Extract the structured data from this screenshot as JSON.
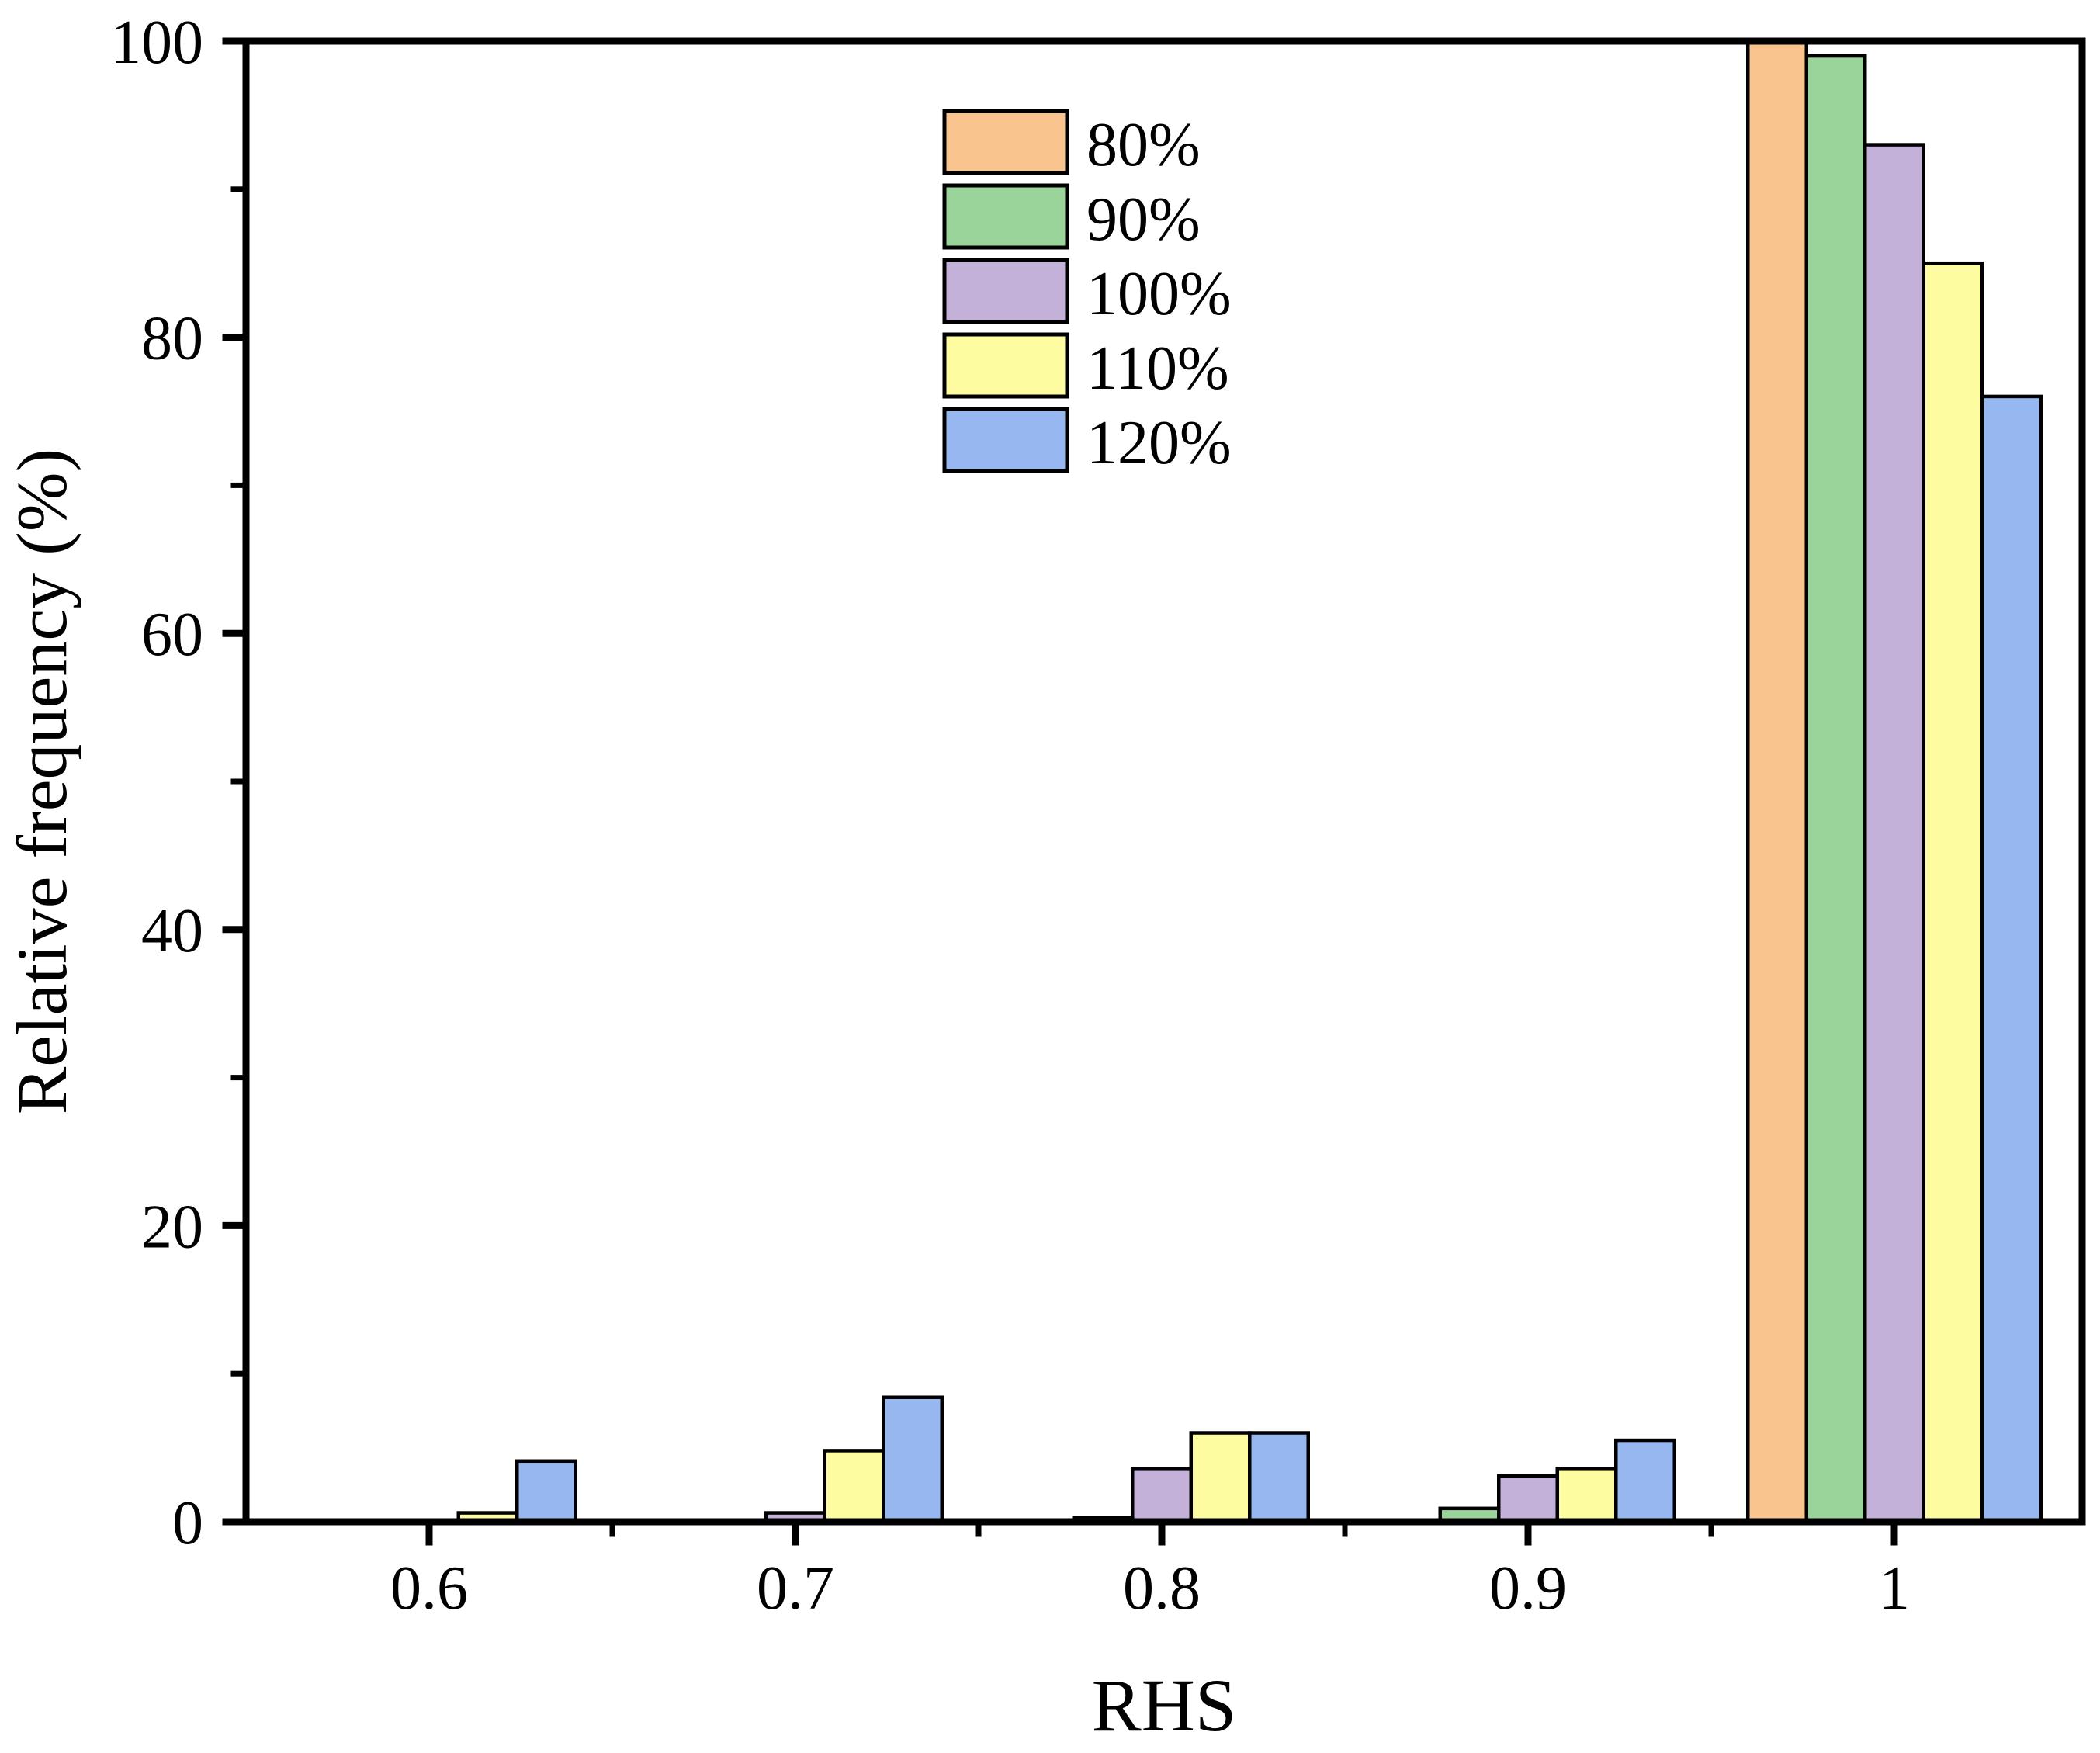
{
  "chart_data": {
    "type": "bar",
    "title": "",
    "xlabel": "RHS",
    "ylabel": "Relative frequency (%)",
    "categories": [
      "0.6",
      "0.7",
      "0.8",
      "0.9",
      "1"
    ],
    "series": [
      {
        "name": "80%",
        "color": "#FAC48F",
        "values": [
          0,
          0,
          0,
          0,
          100
        ]
      },
      {
        "name": "90%",
        "color": "#9AD49A",
        "values": [
          0,
          0,
          0.3,
          0.9,
          99
        ]
      },
      {
        "name": "100%",
        "color": "#C3B1D9",
        "values": [
          0,
          0.6,
          3.6,
          3.1,
          93
        ]
      },
      {
        "name": "110%",
        "color": "#FEFCA1",
        "values": [
          0.6,
          4.8,
          6,
          3.6,
          85
        ]
      },
      {
        "name": "120%",
        "color": "#96B7F0",
        "values": [
          4.1,
          8.4,
          6,
          5.5,
          76
        ]
      }
    ],
    "ylim": [
      0,
      100
    ],
    "y_major_ticks": [
      0,
      20,
      40,
      60,
      80,
      100
    ],
    "y_minor_ticks": [
      10,
      30,
      50,
      70,
      90
    ],
    "x_minor_tick_positions": [
      0.65,
      0.75,
      0.85,
      0.95
    ],
    "legend_position": "upper center-left, no frame",
    "grid": false,
    "bar_edge_color": "#000000",
    "axis_color": "#000000",
    "background_color": "#ffffff"
  }
}
